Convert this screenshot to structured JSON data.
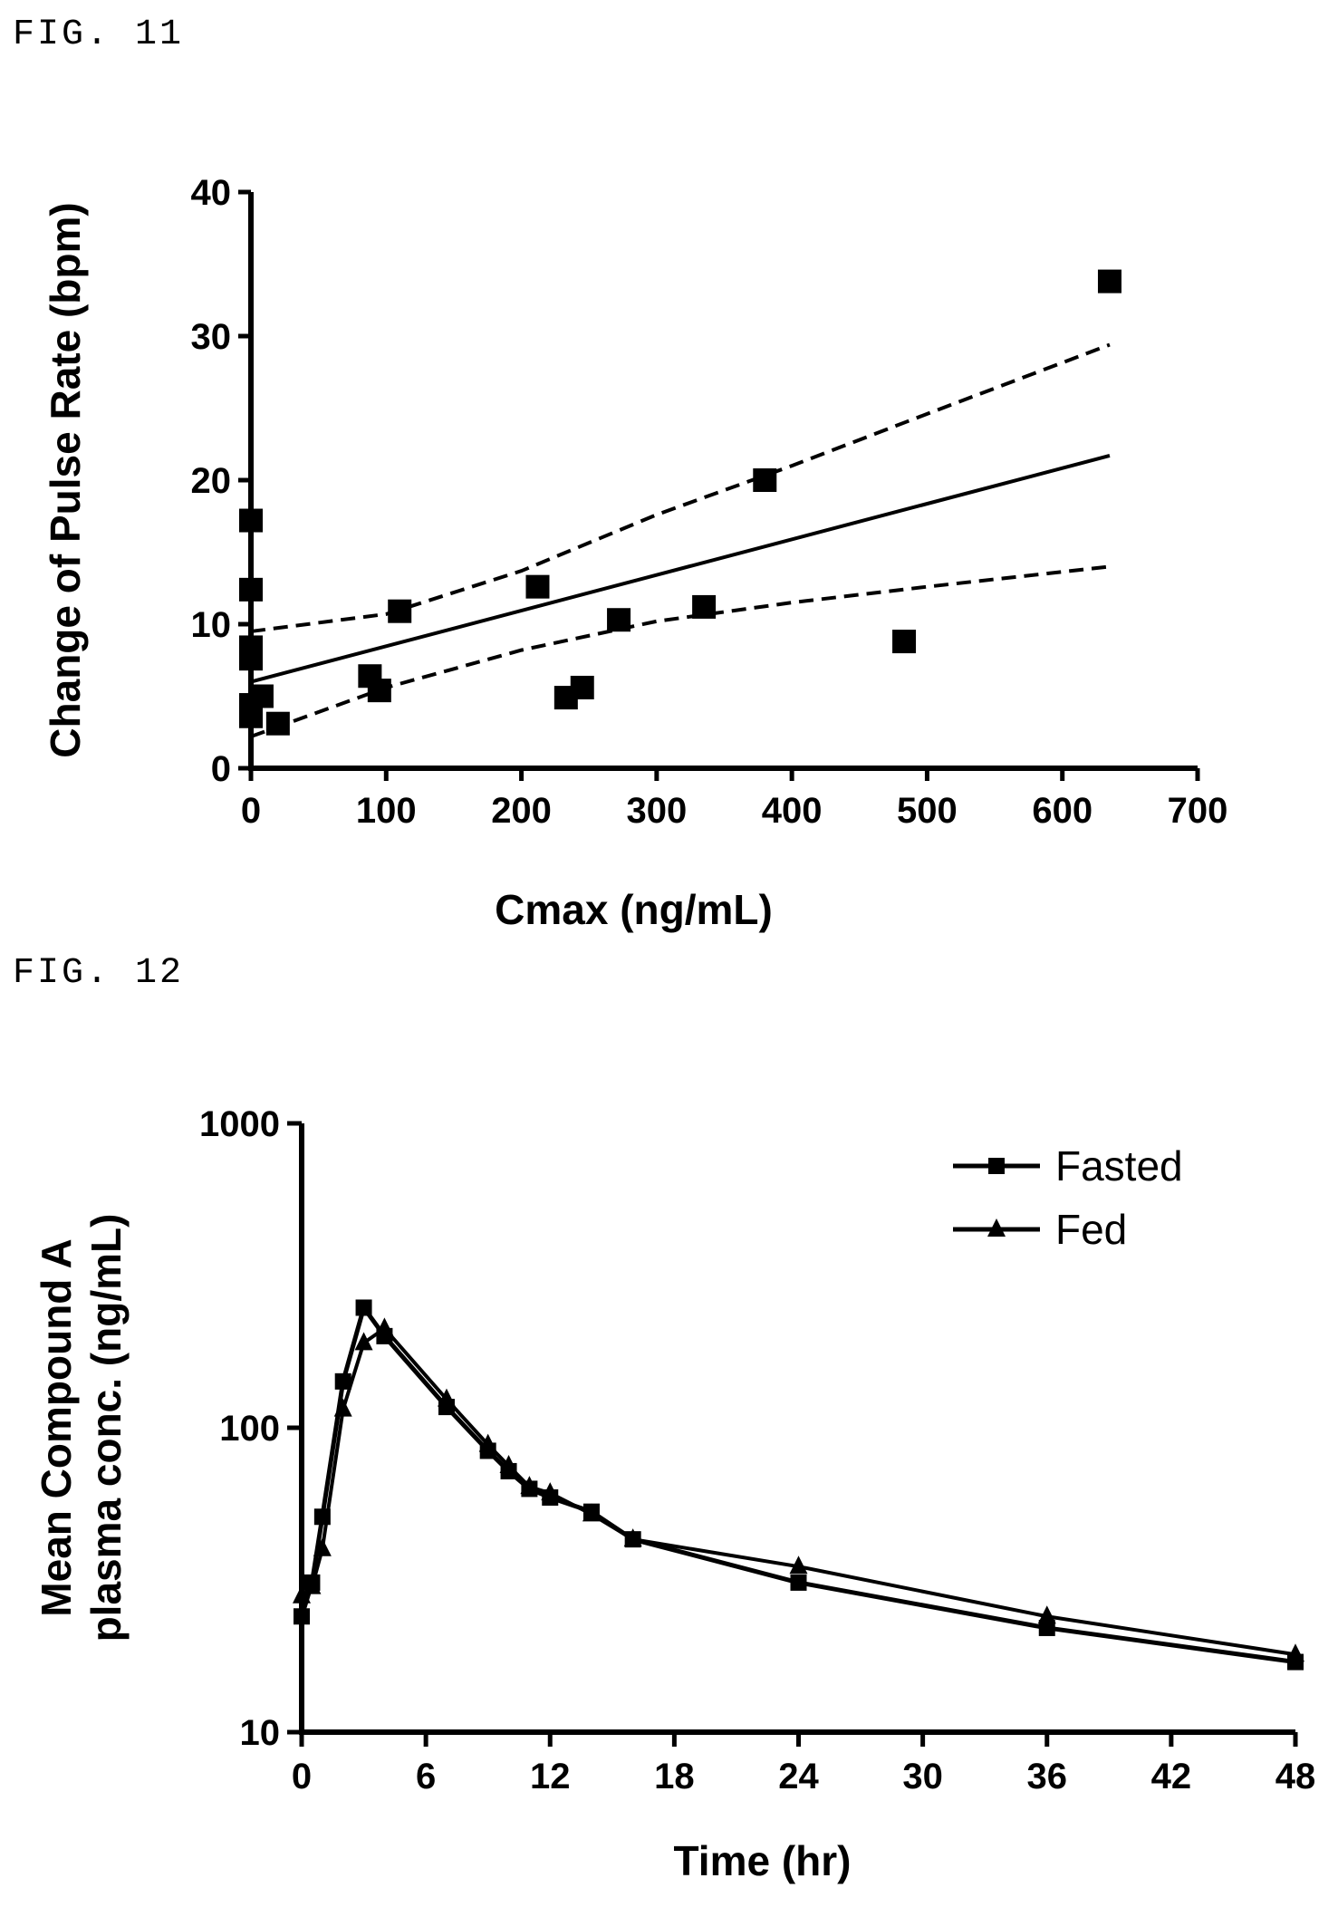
{
  "figures": {
    "fig11_label": "FIG. 11",
    "fig12_label": "FIG. 12"
  },
  "chart_data": [
    {
      "type": "scatter",
      "title": "",
      "xlabel": "Cmax (ng/mL)",
      "ylabel": "Change of Pulse Rate (bpm)",
      "xlim": [
        0,
        700
      ],
      "ylim": [
        0,
        40
      ],
      "xticks": [
        0,
        100,
        200,
        300,
        400,
        500,
        600,
        700
      ],
      "yticks": [
        0,
        10,
        20,
        30,
        40
      ],
      "grid": false,
      "marker": "square",
      "points": [
        {
          "x": 0,
          "y": 17.2
        },
        {
          "x": 0,
          "y": 12.4
        },
        {
          "x": 0,
          "y": 8.4
        },
        {
          "x": 0,
          "y": 7.6
        },
        {
          "x": 0,
          "y": 4.4
        },
        {
          "x": 0,
          "y": 3.6
        },
        {
          "x": 8,
          "y": 5.0
        },
        {
          "x": 20,
          "y": 3.1
        },
        {
          "x": 88,
          "y": 6.4
        },
        {
          "x": 95,
          "y": 5.4
        },
        {
          "x": 110,
          "y": 10.9
        },
        {
          "x": 212,
          "y": 12.6
        },
        {
          "x": 233,
          "y": 4.9
        },
        {
          "x": 245,
          "y": 5.6
        },
        {
          "x": 272,
          "y": 10.3
        },
        {
          "x": 335,
          "y": 11.2
        },
        {
          "x": 380,
          "y": 20.0
        },
        {
          "x": 483,
          "y": 8.8
        },
        {
          "x": 635,
          "y": 33.8
        }
      ],
      "regression": {
        "fit": [
          [
            0,
            6.0
          ],
          [
            635,
            21.7
          ]
        ],
        "upper_ci": [
          [
            0,
            9.5
          ],
          [
            100,
            10.7
          ],
          [
            200,
            13.7
          ],
          [
            300,
            17.6
          ],
          [
            400,
            21.0
          ],
          [
            500,
            24.6
          ],
          [
            635,
            29.4
          ]
        ],
        "lower_ci": [
          [
            0,
            2.2
          ],
          [
            100,
            5.6
          ],
          [
            200,
            8.2
          ],
          [
            300,
            10.2
          ],
          [
            400,
            11.5
          ],
          [
            500,
            12.6
          ],
          [
            635,
            14.0
          ]
        ]
      }
    },
    {
      "type": "line",
      "title": "",
      "xlabel": "Time (hr)",
      "ylabel": "Mean Compound A plasma conc. (ng/mL)",
      "ylabel_lines": [
        "Mean Compound A",
        "plasma conc. (ng/mL)"
      ],
      "xlim": [
        0,
        48
      ],
      "ylim": [
        10,
        1000
      ],
      "yscale": "log",
      "xticks": [
        0,
        6,
        12,
        18,
        24,
        30,
        36,
        42,
        48
      ],
      "yticks": [
        10,
        100,
        1000
      ],
      "grid": false,
      "legend_position": "top-right",
      "series": [
        {
          "name": "Fasted",
          "marker": "square",
          "x": [
            0,
            0.5,
            1,
            2,
            3,
            4,
            7,
            9,
            10,
            11,
            12,
            14,
            16,
            24,
            36,
            48
          ],
          "y": [
            24,
            31,
            51,
            142,
            248,
            200,
            117,
            84,
            72,
            63,
            59,
            53,
            43,
            31,
            22,
            17
          ]
        },
        {
          "name": "Fed",
          "marker": "triangle",
          "x": [
            0,
            0.5,
            1,
            2,
            3,
            4,
            7,
            9,
            10,
            11,
            12,
            14,
            16,
            24,
            36,
            48
          ],
          "y": [
            28,
            30,
            40,
            115,
            190,
            212,
            124,
            88,
            75,
            64,
            61,
            52,
            43,
            35,
            24,
            18
          ]
        }
      ]
    }
  ]
}
